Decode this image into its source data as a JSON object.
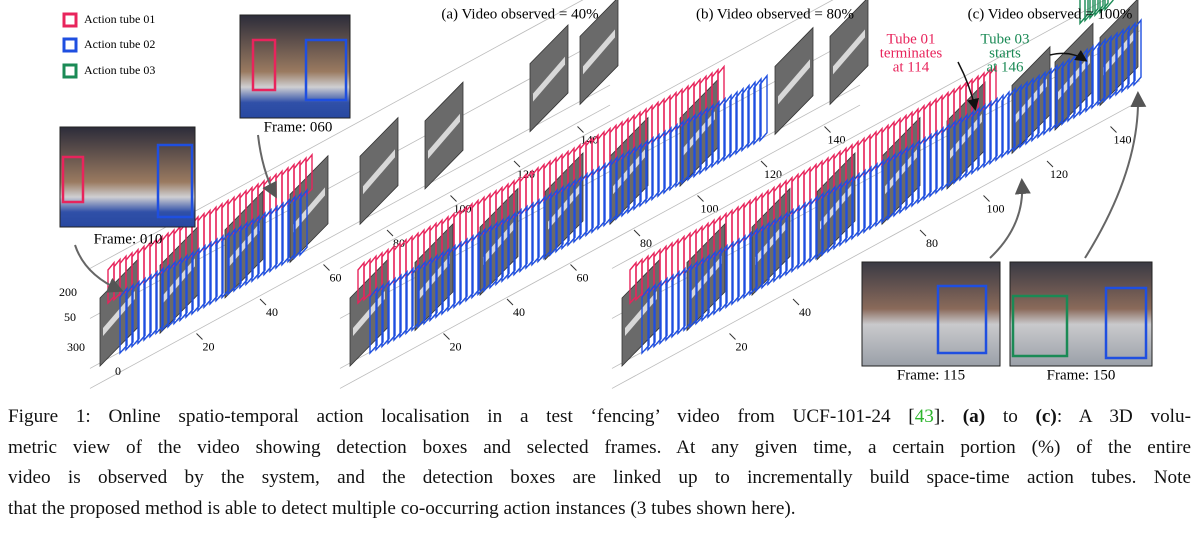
{
  "legend": [
    "Action tube 01",
    "Action tube 02",
    "Action tube 03"
  ],
  "panels": [
    {
      "title": "(a) Video observed = 40%",
      "ticks": [
        20,
        40,
        60,
        80,
        100,
        120,
        140
      ]
    },
    {
      "title": "(b) Video observed = 80%",
      "ticks": [
        20,
        40,
        60,
        80,
        100,
        120,
        140
      ]
    },
    {
      "title": "(c) Video observed = 100%",
      "ticks": [
        20,
        40,
        80,
        100,
        120,
        140
      ]
    }
  ],
  "axis_labels": {
    "y": [
      "200",
      "50",
      "300"
    ],
    "origin": "0"
  },
  "frames": [
    "Frame: 010",
    "Frame: 060",
    "Frame: 115",
    "Frame: 150"
  ],
  "annotations": [
    {
      "lines": [
        "Tube 01",
        "terminates",
        "at 114"
      ]
    },
    {
      "lines": [
        "Tube 03",
        "starts",
        "at 146"
      ]
    }
  ],
  "caption": {
    "lines": [
      [
        "Figure 1: Online spatio-temporal action localisation in a test ‘fencing’ video from UCF-101-24 [",
        "43",
        "]. ",
        "(a)",
        " to ",
        "(c)",
        ": A 3D volu-"
      ],
      [
        "metric view of the video showing detection boxes and selected frames. At any given time, a certain portion (%) of the entire"
      ],
      [
        "video is observed by the system, and the detection boxes are linked up to incrementally build space-time action tubes. Note"
      ],
      [
        "that the proposed method is able to detect multiple co-occurring action instances (3 tubes shown here)."
      ]
    ]
  }
}
